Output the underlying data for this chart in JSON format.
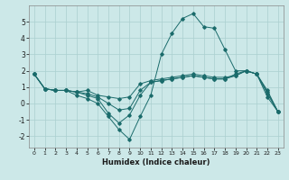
{
  "title": "",
  "xlabel": "Humidex (Indice chaleur)",
  "background_color": "#cce8e8",
  "grid_color": "#aacfcf",
  "line_color": "#1a6b6b",
  "xlim": [
    -0.5,
    23.5
  ],
  "ylim": [
    -2.7,
    6.0
  ],
  "xticks": [
    0,
    1,
    2,
    3,
    4,
    5,
    6,
    7,
    8,
    9,
    10,
    11,
    12,
    13,
    14,
    15,
    16,
    17,
    18,
    19,
    20,
    21,
    22,
    23
  ],
  "yticks": [
    -2,
    -1,
    0,
    1,
    2,
    3,
    4,
    5
  ],
  "line1_y": [
    1.8,
    0.9,
    0.8,
    0.8,
    0.7,
    0.5,
    0.3,
    -0.6,
    -1.2,
    -0.7,
    0.5,
    1.3,
    1.4,
    1.5,
    1.6,
    1.7,
    1.6,
    1.5,
    1.5,
    1.8,
    2.0,
    1.8,
    0.7,
    -0.5
  ],
  "line2_y": [
    1.8,
    0.9,
    0.8,
    0.8,
    0.7,
    0.8,
    0.5,
    0.4,
    0.3,
    0.4,
    1.2,
    1.4,
    1.5,
    1.6,
    1.7,
    1.8,
    1.7,
    1.6,
    1.6,
    1.7,
    2.0,
    1.8,
    0.8,
    -0.5
  ],
  "line3_y": [
    1.8,
    0.9,
    0.8,
    0.8,
    0.5,
    0.3,
    0.0,
    -0.8,
    -1.6,
    -2.2,
    -0.8,
    0.5,
    3.0,
    4.3,
    5.2,
    5.5,
    4.7,
    4.6,
    3.3,
    2.0,
    2.0,
    1.8,
    0.4,
    -0.5
  ],
  "line4_y": [
    1.8,
    0.9,
    0.8,
    0.8,
    0.7,
    0.6,
    0.4,
    0.0,
    -0.4,
    -0.3,
    0.8,
    1.3,
    1.4,
    1.5,
    1.6,
    1.7,
    1.6,
    1.5,
    1.5,
    1.7,
    2.0,
    1.8,
    0.6,
    -0.5
  ]
}
